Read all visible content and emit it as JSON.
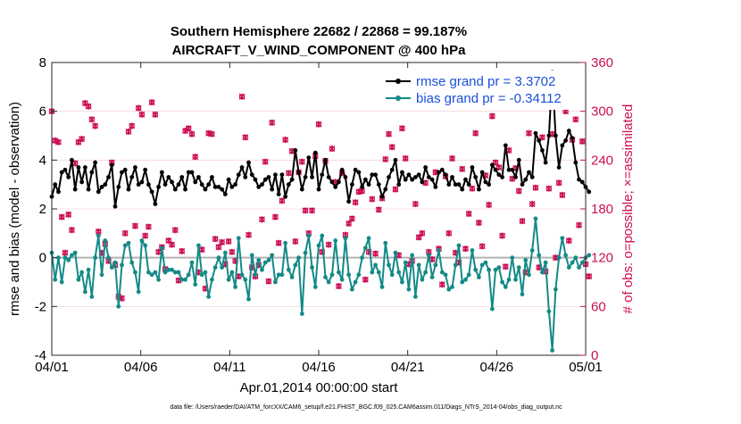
{
  "chart_data": {
    "type": "line",
    "title": "Southern Hemisphere 22682 / 22868 = 99.187%",
    "subtitle": "AIRCRAFT_V_WIND_COMPONENT @ 400 hPa",
    "xlabel": "Apr.01,2014 00:00:00 start",
    "ylabel": "rmse and bias (model - observation)",
    "ylabel_right": "# of obs: o=possible; ×=assimilated",
    "footer": "data file: /Users/raeder/DAI/ATM_forcXX/CAM6_setup/f.e21.FHIST_BGC.f09_025.CAM6assim.011/Diags_NTrS_2014-04/obs_diag_output.nc",
    "xlim": [
      0,
      30
    ],
    "ylim": [
      -4,
      8
    ],
    "ylim_right": [
      0,
      360
    ],
    "x_ticks": [
      0,
      5,
      10,
      15,
      20,
      25,
      30
    ],
    "x_tick_labels": [
      "04/01",
      "04/06",
      "04/11",
      "04/16",
      "04/21",
      "04/26",
      "05/01"
    ],
    "y_ticks": [
      -4,
      -2,
      0,
      2,
      4,
      6,
      8
    ],
    "y_tick_labels": [
      "-4",
      "-2",
      "0",
      "2",
      "4",
      "6",
      "8"
    ],
    "y_right_ticks": [
      0,
      60,
      120,
      180,
      240,
      300,
      360
    ],
    "y_right_tick_labels": [
      "0",
      "60",
      "120",
      "180",
      "240",
      "300",
      "360"
    ],
    "legend_position": "top-right",
    "series": [
      {
        "name": "rmse grand pr = 3.3702",
        "color": "#000000",
        "values": [
          2.5,
          3,
          2.7,
          3.5,
          3.6,
          3.3,
          4.0,
          2.8,
          3.7,
          3.1,
          3.7,
          2.8,
          3.5,
          3.9,
          2.7,
          2.9,
          3.0,
          3.3,
          3.8,
          2.1,
          2.9,
          3.5,
          3.6,
          2.8,
          3.3,
          3.7,
          3.0,
          3.1,
          3.6,
          3.0,
          2.7,
          2.2,
          2.9,
          3.5,
          3.0,
          3.3,
          3.1,
          2.8,
          3.0,
          3.3,
          2.8,
          3.5,
          3.5,
          3.1,
          3.3,
          3.0,
          2.8,
          3.0,
          3.3,
          2.9,
          2.9,
          2.8,
          2.6,
          3.2,
          2.9,
          3.0,
          3.4,
          3.7,
          3.3,
          3.9,
          3.4,
          3.2,
          2.9,
          3.0,
          3.2,
          3.3,
          2.8,
          3.4,
          2.6,
          3.4,
          2.5,
          3.0,
          3.2,
          4.4,
          3.5,
          2.8,
          3.3,
          4.1,
          3.3,
          4.3,
          2.8,
          3.4,
          4.0,
          3.3,
          3.1,
          2.9,
          3.1,
          3.6,
          3.3,
          2.3,
          3.0,
          3.6,
          3.5,
          2.9,
          3.2,
          3.0,
          3.4,
          3.4,
          3.0,
          2.5,
          2.8,
          3.3,
          3.6,
          4.0,
          3.0,
          3.5,
          3.2,
          3.4,
          3.2,
          3.3,
          3.4,
          3.1,
          3.7,
          3.3,
          3.2,
          2.9,
          3.5,
          3.6,
          3.4,
          3.0,
          3.3,
          3.0,
          3.0,
          2.8,
          3.2,
          3.0,
          3.7,
          3.3,
          2.8,
          3.5,
          3.1,
          3.0,
          3.8,
          3.6,
          3.4,
          3.3,
          4.6,
          3.6,
          3.6,
          3.3,
          4.0,
          3.0,
          3.2,
          3.5,
          3.3,
          5.1,
          4.8,
          4.4,
          3.9,
          5.0,
          7.6,
          5.0,
          3.7,
          4.6,
          4.8,
          5.2,
          4.9,
          3.9,
          3.2,
          3.1,
          2.9,
          2.7
        ],
        "x_start": 0.0,
        "x_step": 0.1875
      },
      {
        "name": "bias grand pr = -0.34112",
        "color": "#138a87",
        "values": [
          0.2,
          -0.9,
          0.0,
          -1.0,
          0.0,
          -0.1,
          0.1,
          0.2,
          -0.9,
          -0.6,
          -1.4,
          -0.5,
          -1.6,
          0.0,
          0.9,
          -0.7,
          0.7,
          0.0,
          -0.4,
          -0.2,
          -2.0,
          -0.3,
          0.5,
          0.6,
          -0.2,
          -0.6,
          -1.4,
          0.7,
          0.5,
          -0.6,
          -0.7,
          -0.6,
          -0.9,
          0.4,
          -0.6,
          -0.5,
          -0.5,
          -0.6,
          -0.6,
          -0.9,
          -0.9,
          -0.7,
          -0.2,
          -1.1,
          0.5,
          -0.7,
          -0.6,
          -1.6,
          -0.9,
          -0.4,
          0.0,
          -0.4,
          0.2,
          -0.9,
          -0.6,
          -1.2,
          0.8,
          -0.7,
          -0.9,
          -1.7,
          0.1,
          -0.7,
          -0.1,
          -0.5,
          -0.2,
          -0.1,
          0.1,
          -1.0,
          -0.7,
          -0.7,
          0.6,
          -0.5,
          -0.8,
          -0.3,
          0.0,
          -2.3,
          0.2,
          0.9,
          -0.4,
          -1.2,
          0.5,
          0.9,
          -0.8,
          -1.0,
          -0.7,
          0.7,
          -0.6,
          -0.9,
          0.8,
          -0.7,
          -1.3,
          -1.0,
          -0.7,
          0.0,
          0.4,
          0.8,
          -0.6,
          -0.3,
          -0.6,
          -1.2,
          0.6,
          -0.3,
          -0.7,
          0.2,
          -0.6,
          -1.0,
          -0.2,
          -1.3,
          0.1,
          -1.6,
          -0.3,
          -0.9,
          -0.6,
          0.1,
          -0.8,
          -0.3,
          0.3,
          -0.6,
          -0.7,
          -1.3,
          -1.2,
          -0.3,
          0.5,
          -1.0,
          -0.9,
          -0.7,
          0.3,
          -0.5,
          -0.8,
          -0.3,
          -0.2,
          -0.5,
          -2.1,
          -0.5,
          -0.4,
          -1.0,
          -1.2,
          -0.9,
          0.0,
          -0.9,
          -0.4,
          -1.5,
          -0.1,
          -0.7,
          0.3,
          1.6,
          0.1,
          -0.6,
          -0.2,
          -2.2,
          -3.8,
          -1.3,
          0.0,
          0.8,
          0.1,
          -0.4,
          -0.2,
          0.0,
          -0.4,
          -0.2,
          0.0,
          0.1
        ],
        "x_start": 0.0,
        "x_step": 0.1875
      }
    ],
    "obs_counts_assimilated": {
      "marker": "×",
      "color": "#cc0e55",
      "values": [
        300,
        264,
        262,
        170,
        126,
        173,
        154,
        236,
        262,
        266,
        310,
        306,
        290,
        282,
        152,
        126,
        137,
        116,
        237,
        111,
        72,
        70,
        150,
        275,
        282,
        159,
        304,
        296,
        147,
        158,
        311,
        296,
        127,
        133,
        106,
        141,
        136,
        154,
        92,
        128,
        276,
        279,
        272,
        244,
        102,
        130,
        82,
        273,
        272,
        143,
        133,
        139,
        112,
        140,
        127,
        116,
        97,
        318,
        268,
        148,
        108,
        97,
        111,
        167,
        238,
        91,
        286,
        170,
        138,
        190,
        265,
        224,
        251,
        140,
        225,
        238,
        178,
        150,
        178,
        245,
        284,
        127,
        239,
        136,
        254,
        213,
        85,
        224,
        148,
        162,
        168,
        188,
        201,
        202,
        93,
        127,
        192,
        125,
        179,
        193,
        241,
        272,
        256,
        204,
        123,
        279,
        242,
        112,
        116,
        186,
        145,
        150,
        212,
        127,
        118,
        225,
        131,
        87,
        220,
        150,
        242,
        126,
        114,
        229,
        131,
        174,
        205,
        273,
        163,
        134,
        221,
        185,
        294,
        237,
        231,
        147,
        109,
        252,
        217,
        230,
        202,
        165,
        102,
        273,
        186,
        206,
        108,
        268,
        103,
        205,
        272,
        120,
        212,
        197,
        300,
        141,
        265,
        290,
        160,
        263,
        112,
        97
      ],
      "x_start": 0.0,
      "x_step": 0.1875
    },
    "obs_counts_possible": {
      "marker": "o",
      "color": "#cc0e55",
      "values": [
        300,
        264,
        262,
        170,
        126,
        173,
        154,
        236,
        262,
        266,
        310,
        306,
        290,
        282,
        152,
        126,
        137,
        116,
        237,
        111,
        72,
        70,
        150,
        275,
        282,
        159,
        304,
        296,
        147,
        158,
        311,
        296,
        127,
        133,
        106,
        141,
        136,
        154,
        92,
        128,
        276,
        279,
        272,
        244,
        102,
        130,
        82,
        273,
        272,
        143,
        133,
        139,
        112,
        140,
        127,
        116,
        97,
        318,
        268,
        148,
        108,
        97,
        111,
        167,
        238,
        91,
        286,
        170,
        138,
        190,
        265,
        224,
        251,
        140,
        225,
        238,
        178,
        150,
        178,
        245,
        284,
        127,
        239,
        136,
        254,
        213,
        85,
        224,
        148,
        162,
        168,
        188,
        201,
        202,
        93,
        127,
        192,
        125,
        179,
        193,
        241,
        272,
        256,
        204,
        123,
        279,
        242,
        112,
        116,
        186,
        145,
        150,
        212,
        127,
        118,
        225,
        131,
        87,
        220,
        150,
        242,
        126,
        114,
        229,
        131,
        174,
        205,
        273,
        163,
        134,
        221,
        185,
        294,
        237,
        231,
        147,
        109,
        252,
        217,
        230,
        202,
        165,
        102,
        273,
        186,
        206,
        108,
        268,
        103,
        205,
        272,
        120,
        212,
        197,
        300,
        141,
        265,
        290,
        160,
        263,
        112,
        97
      ],
      "x_start": 0.0,
      "x_step": 0.1875
    }
  }
}
